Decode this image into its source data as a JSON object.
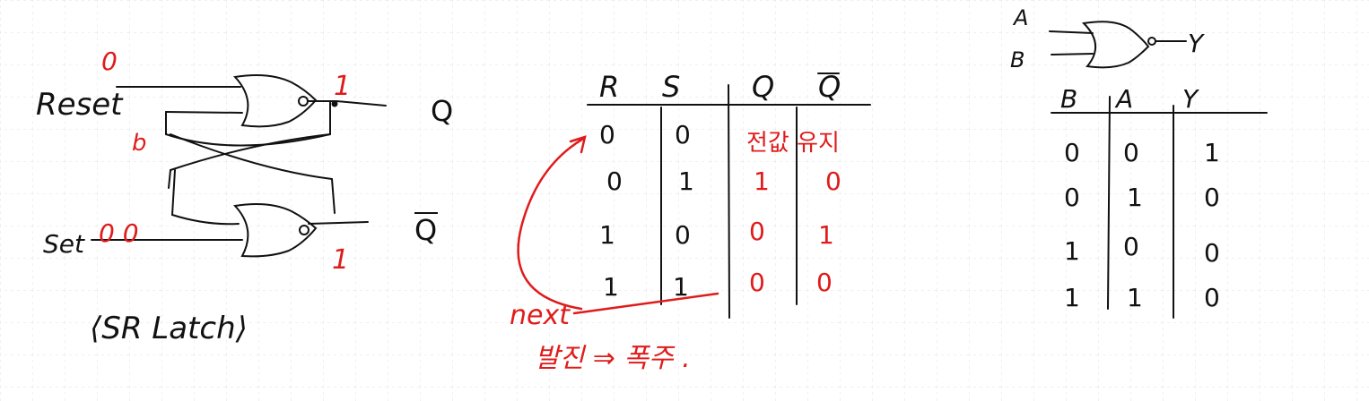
{
  "colors": {
    "ink": "#111111",
    "red": "#e01b1b",
    "grid": "#dcdcdc"
  },
  "sr_latch": {
    "reset_label": "Reset",
    "set_label": "Set",
    "q_label": "Q",
    "qbar_label": "Q",
    "caption": "⟨SR Latch⟩",
    "reset_input_value": "0",
    "set_input_value": "0 0",
    "feedback_b": "b",
    "q_value": "1",
    "qbar_value": "1"
  },
  "sr_table": {
    "headers": [
      "R",
      "S",
      "Q",
      "Q"
    ],
    "rows": [
      [
        "0",
        "0",
        "전값 유지",
        ""
      ],
      [
        "0",
        "1",
        "1",
        "0"
      ],
      [
        "1",
        "0",
        "0",
        "1"
      ],
      [
        "1",
        "1",
        "0",
        "0"
      ]
    ],
    "next_label": "next",
    "oscillation_note": "발진 ⇒ 폭주 ."
  },
  "nor_gate": {
    "input_a": "A",
    "input_b": "B",
    "output_y": "Y",
    "headers": [
      "B",
      "A",
      "Y"
    ],
    "rows": [
      [
        "0",
        "0",
        "1"
      ],
      [
        "0",
        "1",
        "0"
      ],
      [
        "1",
        "0",
        "0"
      ],
      [
        "1",
        "1",
        "0"
      ]
    ]
  }
}
